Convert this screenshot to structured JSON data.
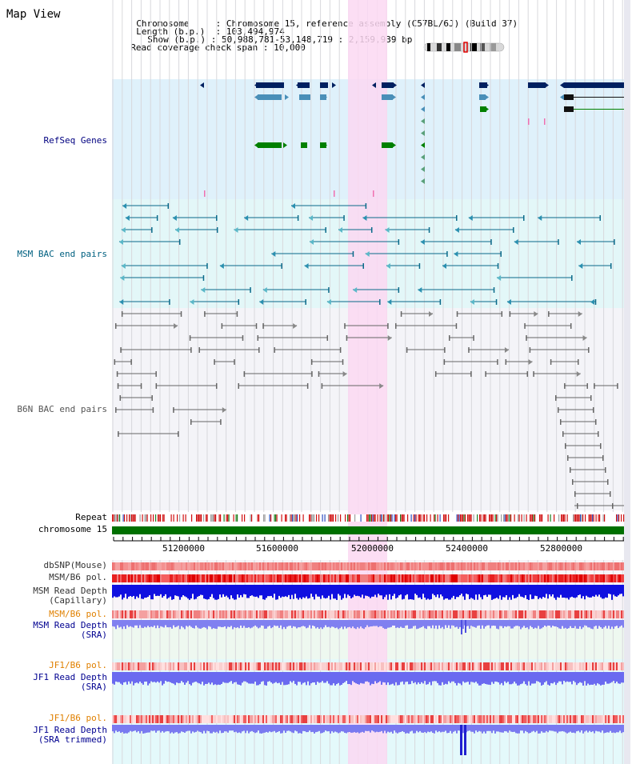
{
  "page": {
    "title": "Map View"
  },
  "header": {
    "chromosome_label": "Chromosome",
    "chromosome_value": "Chromosome 15, reference assembly (C57BL/6J) (Build 37)",
    "length_label": "Length (b.p.)",
    "length_value": "103,494,974",
    "show_label": "Show (b.p.)",
    "show_value": "50,988,781-53,148,719 : 2,159,939 bp",
    "coverage_label": "Read coverage check span",
    "coverage_value": "10,000"
  },
  "tracks": {
    "refseq": "RefSeq Genes",
    "msm_bac": "MSM BAC end pairs",
    "b6n_bac": "B6N BAC end pairs",
    "repeat": "Repeat",
    "chromosome": "chromosome 15",
    "dbsnp": "dbSNP(Mouse)",
    "msm_b6_pol_1": "MSM/B6 pol.",
    "msm_depth_cap_1": "MSM Read Depth",
    "msm_depth_cap_2": "(Capillary)",
    "msm_b6_pol_2": "MSM/B6 pol.",
    "msm_depth_sra_1": "MSM Read Depth",
    "msm_depth_sra_2": "(SRA)",
    "jf1_b6_pol_1": "JF1/B6 pol.",
    "jf1_depth_sra_1": "JF1 Read Depth",
    "jf1_depth_sra_2": "(SRA)",
    "jf1_b6_pol_2": "JF1/B6 pol.",
    "jf1_depth_trim_1": "JF1 Read Depth",
    "jf1_depth_trim_2": "(SRA trimmed)"
  },
  "ruler": {
    "ticks": [
      "51200000",
      "51600000",
      "52000000",
      "52400000",
      "52800000"
    ]
  },
  "colors": {
    "refseq_bg": "#dff1fb",
    "msm_bac_bg": "#e3f7f8",
    "b6n_bac_bg": "#f3f3f7",
    "highlight": "#fbd8f2",
    "refseq_label": "#000080",
    "msm_label": "#006080",
    "b6n_label": "#555555",
    "msm_pol_label": "#e08000",
    "jf1_label": "#000090"
  }
}
